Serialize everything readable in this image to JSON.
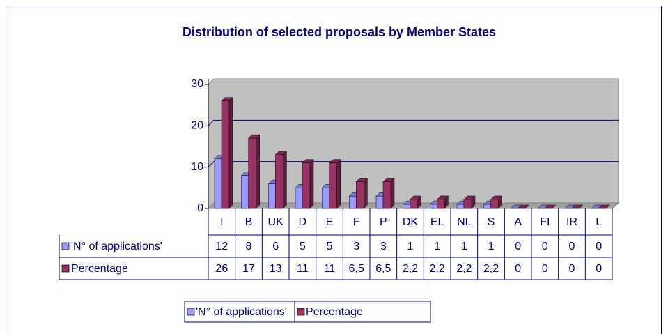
{
  "chart_data": {
    "type": "bar3d",
    "title": "Distribution of selected proposals by Member States",
    "categories": [
      "I",
      "B",
      "UK",
      "D",
      "E",
      "F",
      "P",
      "DK",
      "EL",
      "NL",
      "S",
      "A",
      "FI",
      "IR",
      "L"
    ],
    "series": [
      {
        "name": "'N° of applications'",
        "color": "#9999ff",
        "values": [
          12,
          8,
          6,
          5,
          5,
          3,
          3,
          1,
          1,
          1,
          1,
          0,
          0,
          0,
          0
        ]
      },
      {
        "name": "Percentage",
        "color": "#993366",
        "values": [
          26,
          17,
          13,
          11,
          11,
          6.5,
          6.5,
          2.2,
          2.2,
          2.2,
          2.2,
          0,
          0,
          0,
          0
        ],
        "value_labels": [
          "26",
          "17",
          "13",
          "11",
          "11",
          "6,5",
          "6,5",
          "2,2",
          "2,2",
          "2,2",
          "2,2",
          "0",
          "0",
          "0",
          "0"
        ]
      }
    ],
    "ylim": [
      0,
      30
    ],
    "yticks": [
      0,
      10,
      20,
      30
    ],
    "grid": true,
    "legend": "bottom"
  }
}
